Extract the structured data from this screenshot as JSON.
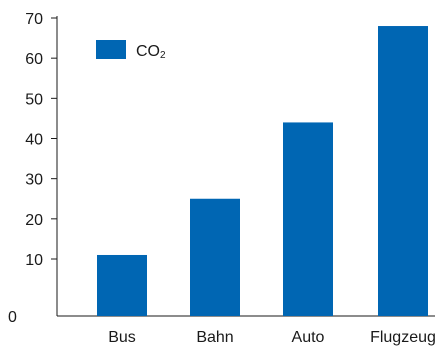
{
  "chart_data": {
    "type": "bar",
    "categories": [
      "Bus",
      "Bahn",
      "Auto",
      "Flugzeug"
    ],
    "series": [
      {
        "name": "CO2",
        "values": [
          11,
          25,
          44,
          68
        ],
        "color": "#0066b3"
      }
    ],
    "ylim": [
      0,
      70
    ],
    "yticks": [
      0,
      10,
      20,
      30,
      40,
      50,
      60,
      70
    ],
    "legend": {
      "label_main": "CO",
      "label_sub": "2",
      "placement": "top-left"
    },
    "grid": false,
    "title": "",
    "xlabel": "",
    "ylabel": ""
  }
}
